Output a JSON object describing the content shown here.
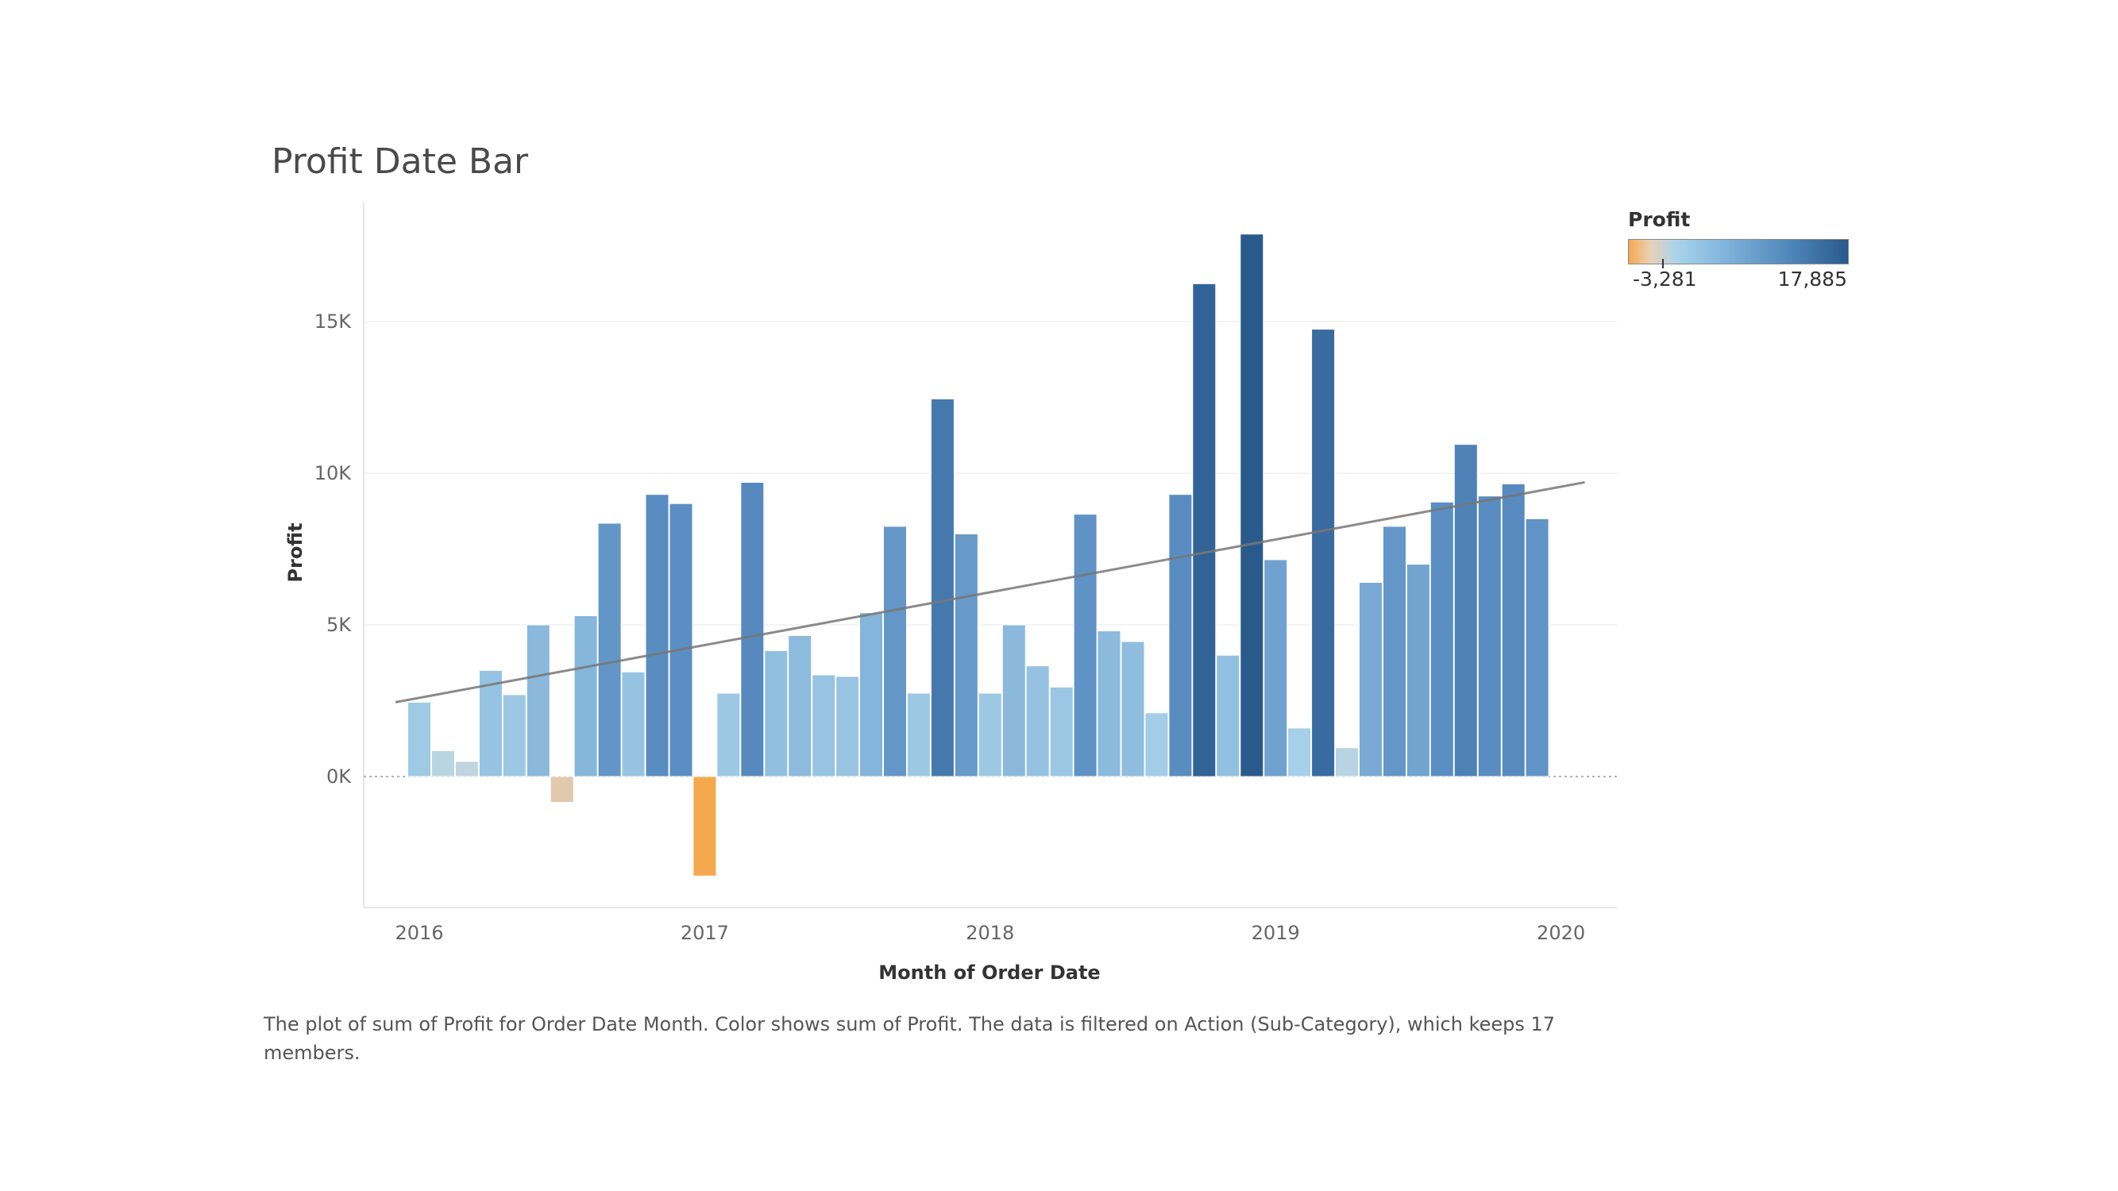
{
  "page": {
    "title": "Profit Date Bar",
    "caption": "The plot of sum of Profit for Order Date Month.  Color shows sum of Profit. The data is filtered on Action (Sub-Category), which keeps 17 members."
  },
  "legend": {
    "title": "Profit",
    "min_label": "-3,281",
    "max_label": "17,885",
    "colors": [
      "#f6a84e",
      "#e8d2b8",
      "#a9d3ec",
      "#7fb2da",
      "#4c84b8",
      "#2a5a8c"
    ]
  },
  "chart_data": {
    "type": "bar",
    "title": "Profit Date Bar",
    "xlabel": "Month of Order Date",
    "ylabel": "Profit",
    "ylim": [
      -4300,
      18800
    ],
    "yticks": [
      0,
      5000,
      10000,
      15000
    ],
    "ytick_labels": [
      "0K",
      "5K",
      "10K",
      "15K"
    ],
    "xticks": [
      "2016",
      "2017",
      "2018",
      "2019",
      "2020"
    ],
    "grid": true,
    "legend_position": "top-right",
    "categories": [
      "2016-01",
      "2016-02",
      "2016-03",
      "2016-04",
      "2016-05",
      "2016-06",
      "2016-07",
      "2016-08",
      "2016-09",
      "2016-10",
      "2016-11",
      "2016-12",
      "2017-01",
      "2017-02",
      "2017-03",
      "2017-04",
      "2017-05",
      "2017-06",
      "2017-07",
      "2017-08",
      "2017-09",
      "2017-10",
      "2017-11",
      "2017-12",
      "2018-01",
      "2018-02",
      "2018-03",
      "2018-04",
      "2018-05",
      "2018-06",
      "2018-07",
      "2018-08",
      "2018-09",
      "2018-10",
      "2018-11",
      "2018-12",
      "2019-01",
      "2019-02",
      "2019-03",
      "2019-04",
      "2019-05",
      "2019-06",
      "2019-07",
      "2019-08",
      "2019-09",
      "2019-10",
      "2019-11",
      "2019-12"
    ],
    "values": [
      2450,
      850,
      500,
      3500,
      2700,
      5000,
      -850,
      5300,
      8350,
      3450,
      9300,
      9000,
      -3281,
      2750,
      9700,
      4150,
      4650,
      3350,
      3300,
      5400,
      8250,
      2750,
      12450,
      8000,
      2750,
      5000,
      3650,
      2950,
      8650,
      4800,
      4450,
      2100,
      9300,
      16250,
      4000,
      17885,
      7150,
      1600,
      14750,
      950,
      6400,
      8250,
      7000,
      9050,
      10950,
      9250,
      9650,
      8500
    ],
    "trend_line": {
      "x": [
        "2015-12",
        "2020-02"
      ],
      "y": [
        2450,
        9700
      ]
    }
  }
}
